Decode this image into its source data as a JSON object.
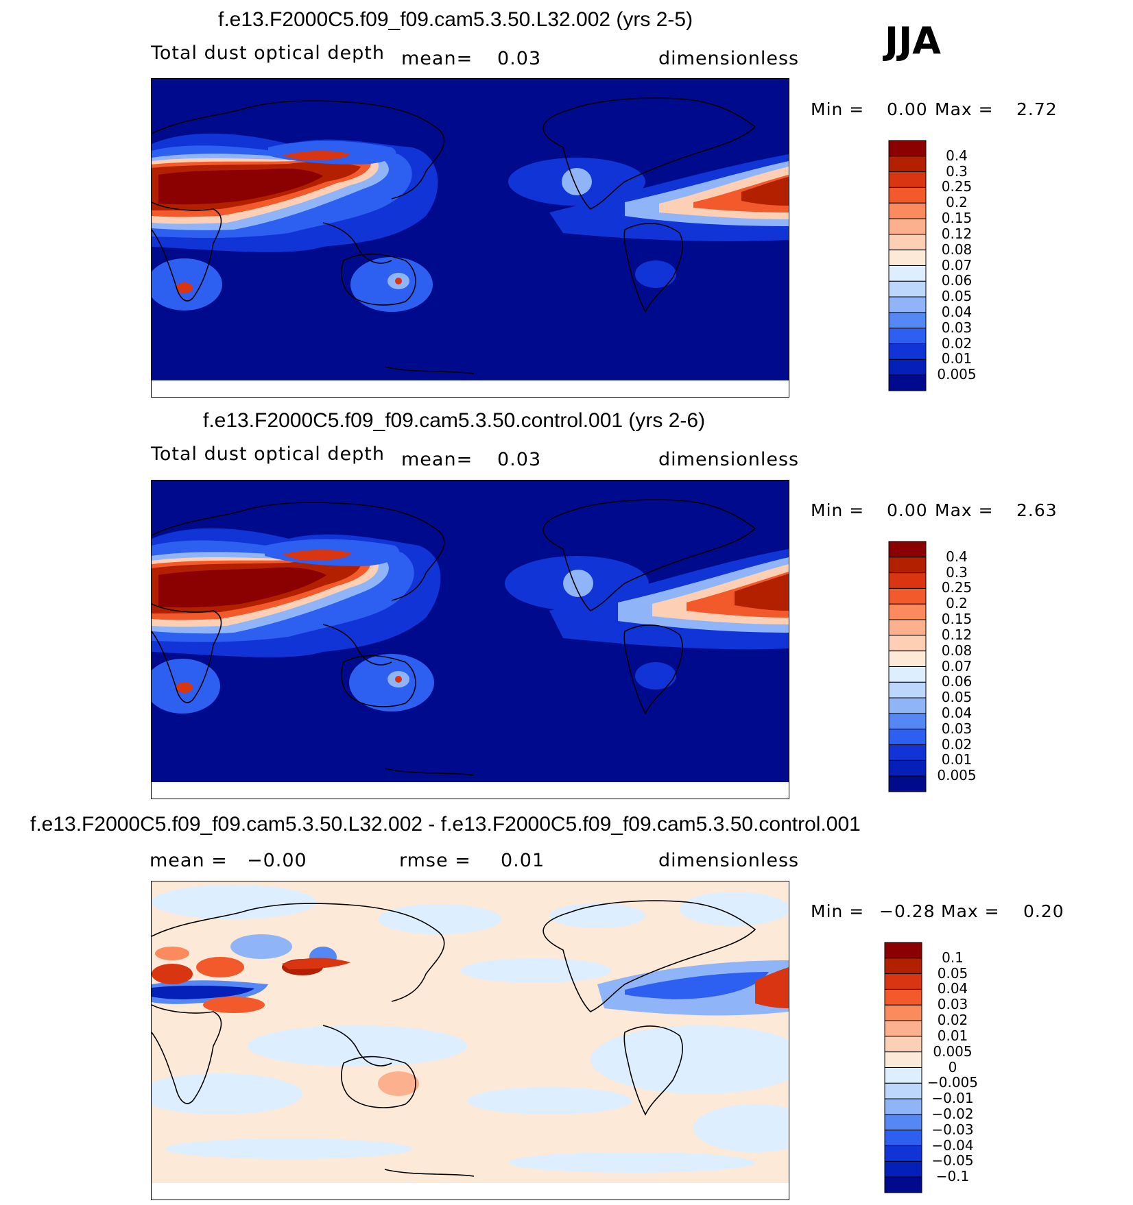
{
  "season": "JJA",
  "panels": [
    {
      "title": "f.e13.F2000C5.f09_f09.cam5.3.50.L32.002 (yrs 2-5)",
      "variable": "Total dust optical depth",
      "stat_label": "mean=",
      "stat_value": "0.03",
      "units": "dimensionless",
      "min_label": "Min =",
      "min_value": "0.00",
      "max_label": "Max =",
      "max_value": "2.72",
      "colorbar": {
        "levels": [
          "0.4",
          "0.3",
          "0.25",
          "0.2",
          "0.15",
          "0.12",
          "0.08",
          "0.07",
          "0.06",
          "0.05",
          "0.04",
          "0.03",
          "0.02",
          "0.01",
          "0.005"
        ],
        "colors": [
          "#8b0000",
          "#b22000",
          "#d83510",
          "#f25a2c",
          "#fb8a5c",
          "#fcb08e",
          "#fdd0b6",
          "#fde9d8",
          "#dceeff",
          "#bcd7fb",
          "#8fb4f7",
          "#5588f5",
          "#2d5ff0",
          "#1034d6",
          "#0520b8",
          "#000a8c"
        ]
      },
      "chart_data": {
        "type": "heatmap",
        "field": "Total dust optical depth",
        "units": "dimensionless",
        "mean": 0.03,
        "min": 0.0,
        "max": 2.72,
        "contour_levels": [
          0.005,
          0.01,
          0.02,
          0.03,
          0.04,
          0.05,
          0.06,
          0.07,
          0.08,
          0.12,
          0.15,
          0.2,
          0.25,
          0.3,
          0.4
        ]
      }
    },
    {
      "title": "f.e13.F2000C5.f09_f09.cam5.3.50.control.001 (yrs 2-6)",
      "variable": "Total dust optical depth",
      "stat_label": "mean=",
      "stat_value": "0.03",
      "units": "dimensionless",
      "min_label": "Min =",
      "min_value": "0.00",
      "max_label": "Max =",
      "max_value": "2.63",
      "colorbar": {
        "levels": [
          "0.4",
          "0.3",
          "0.25",
          "0.2",
          "0.15",
          "0.12",
          "0.08",
          "0.07",
          "0.06",
          "0.05",
          "0.04",
          "0.03",
          "0.02",
          "0.01",
          "0.005"
        ],
        "colors": [
          "#8b0000",
          "#b22000",
          "#d83510",
          "#f25a2c",
          "#fb8a5c",
          "#fcb08e",
          "#fdd0b6",
          "#fde9d8",
          "#dceeff",
          "#bcd7fb",
          "#8fb4f7",
          "#5588f5",
          "#2d5ff0",
          "#1034d6",
          "#0520b8",
          "#000a8c"
        ]
      },
      "chart_data": {
        "type": "heatmap",
        "field": "Total dust optical depth",
        "units": "dimensionless",
        "mean": 0.03,
        "min": 0.0,
        "max": 2.63,
        "contour_levels": [
          0.005,
          0.01,
          0.02,
          0.03,
          0.04,
          0.05,
          0.06,
          0.07,
          0.08,
          0.12,
          0.15,
          0.2,
          0.25,
          0.3,
          0.4
        ]
      }
    },
    {
      "title": "f.e13.F2000C5.f09_f09.cam5.3.50.L32.002 - f.e13.F2000C5.f09_f09.cam5.3.50.control.001",
      "mean_label": "mean =",
      "mean_value": "−0.00",
      "rmse_label": "rmse =",
      "rmse_value": "0.01",
      "units": "dimensionless",
      "min_label": "Min =",
      "min_value": "−0.28",
      "max_label": "Max =",
      "max_value": "0.20",
      "colorbar": {
        "levels": [
          "0.1",
          "0.05",
          "0.04",
          "0.03",
          "0.02",
          "0.01",
          "0.005",
          "0",
          "−0.005",
          "−0.01",
          "−0.02",
          "−0.03",
          "−0.04",
          "−0.05",
          "−0.1"
        ],
        "colors": [
          "#8b0000",
          "#b22000",
          "#d83510",
          "#f25a2c",
          "#fb8a5c",
          "#fcb08e",
          "#fdd0b6",
          "#fde9d8",
          "#dceeff",
          "#bcd7fb",
          "#8fb4f7",
          "#5588f5",
          "#2d5ff0",
          "#1034d6",
          "#0520b8",
          "#000a8c"
        ]
      },
      "chart_data": {
        "type": "heatmap",
        "field": "difference",
        "units": "dimensionless",
        "mean": -0.0,
        "rmse": 0.01,
        "min": -0.28,
        "max": 0.2,
        "contour_levels": [
          -0.1,
          -0.05,
          -0.04,
          -0.03,
          -0.02,
          -0.01,
          -0.005,
          0,
          0.005,
          0.01,
          0.02,
          0.03,
          0.04,
          0.05,
          0.1
        ]
      }
    }
  ]
}
